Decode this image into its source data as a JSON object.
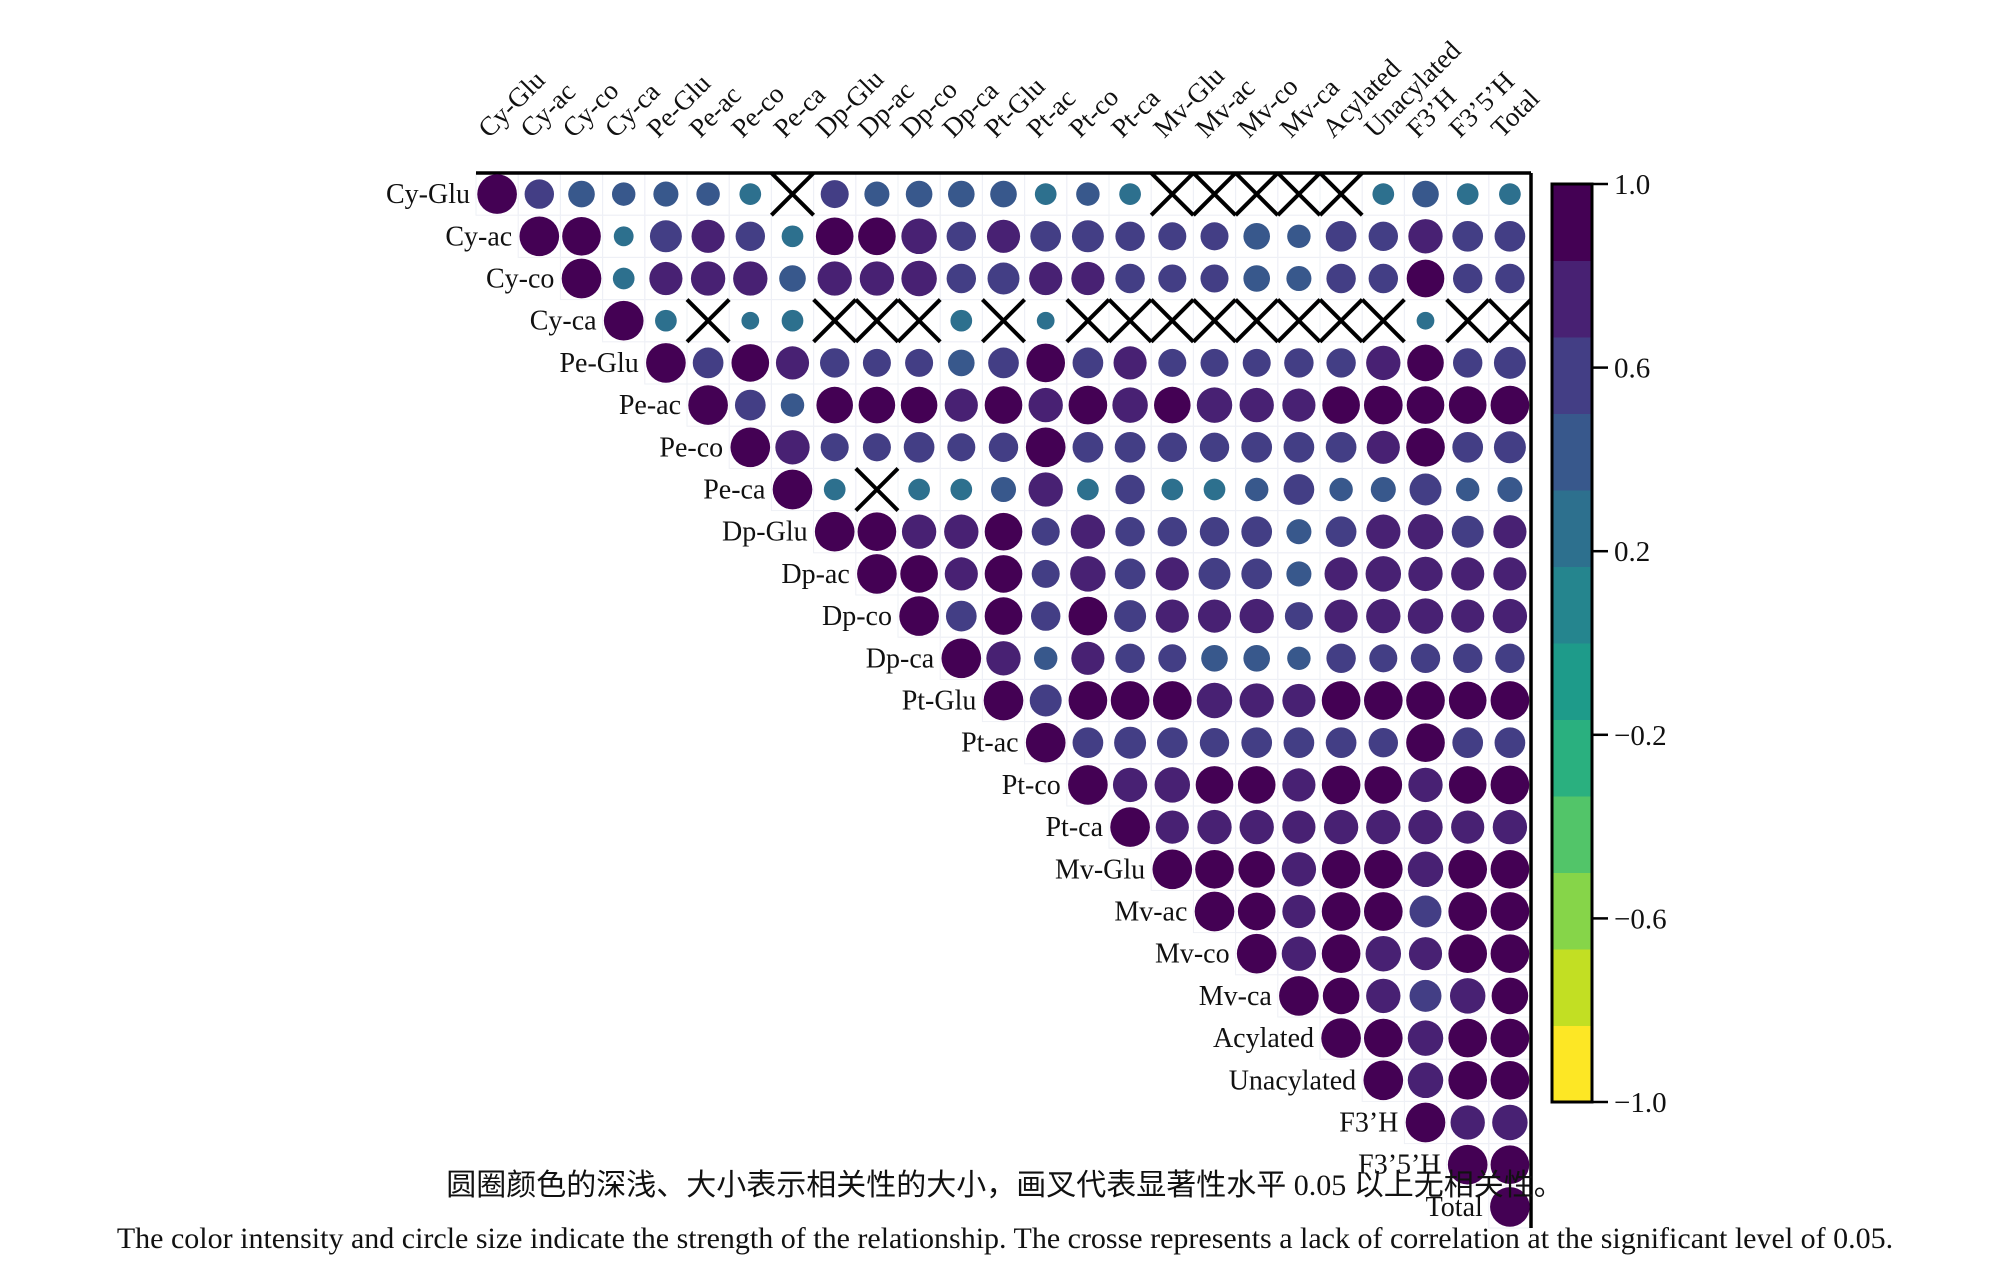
{
  "chart_data": {
    "type": "correlation-matrix",
    "variables": [
      "Cy-Glu",
      "Cy-ac",
      "Cy-co",
      "Cy-ca",
      "Pe-Glu",
      "Pe-ac",
      "Pe-co",
      "Pe-ca",
      "Dp-Glu",
      "Dp-ac",
      "Dp-co",
      "Dp-ca",
      "Pt-Glu",
      "Pt-ac",
      "Pt-co",
      "Pt-ca",
      "Mv-Glu",
      "Mv-ac",
      "Mv-co",
      "Mv-ca",
      "Acylated",
      "Unacylated",
      "F3’H",
      "F3’5’H",
      "Total"
    ],
    "matrix": [
      [
        1.0,
        0.55,
        0.45,
        0.35,
        0.4,
        0.35,
        0.3,
        0.0,
        0.5,
        0.4,
        0.45,
        0.45,
        0.45,
        0.3,
        0.35,
        0.3,
        0.0,
        0.0,
        0.0,
        0.0,
        0.0,
        0.3,
        0.45,
        0.3,
        0.3
      ],
      [
        null,
        1.0,
        0.95,
        0.25,
        0.65,
        0.7,
        0.55,
        0.3,
        0.9,
        0.9,
        0.8,
        0.55,
        0.7,
        0.6,
        0.65,
        0.55,
        0.5,
        0.5,
        0.45,
        0.35,
        0.6,
        0.55,
        0.75,
        0.6,
        0.6
      ],
      [
        null,
        null,
        1.0,
        0.3,
        0.7,
        0.75,
        0.75,
        0.45,
        0.75,
        0.75,
        0.8,
        0.55,
        0.65,
        0.7,
        0.7,
        0.55,
        0.5,
        0.5,
        0.45,
        0.4,
        0.55,
        0.55,
        0.9,
        0.55,
        0.55
      ],
      [
        null,
        null,
        null,
        1.0,
        0.3,
        0.0,
        0.2,
        0.3,
        0.0,
        0.0,
        0.0,
        0.3,
        0.0,
        0.2,
        0.0,
        0.0,
        0.0,
        0.0,
        0.0,
        0.0,
        0.0,
        0.0,
        0.2,
        0.0,
        0.0
      ],
      [
        null,
        null,
        null,
        null,
        1.0,
        0.6,
        0.9,
        0.7,
        0.55,
        0.5,
        0.5,
        0.45,
        0.6,
        0.95,
        0.6,
        0.7,
        0.5,
        0.5,
        0.5,
        0.55,
        0.55,
        0.75,
        0.85,
        0.55,
        0.65
      ],
      [
        null,
        null,
        null,
        null,
        null,
        1.0,
        0.6,
        0.35,
        0.85,
        0.85,
        0.85,
        0.7,
        0.9,
        0.75,
        0.95,
        0.8,
        0.85,
        0.8,
        0.75,
        0.7,
        0.9,
        0.95,
        0.9,
        0.9,
        0.95
      ],
      [
        null,
        null,
        null,
        null,
        null,
        null,
        1.0,
        0.75,
        0.5,
        0.5,
        0.6,
        0.5,
        0.55,
        1.0,
        0.6,
        0.6,
        0.55,
        0.55,
        0.6,
        0.6,
        0.6,
        0.7,
        0.95,
        0.6,
        0.65
      ],
      [
        null,
        null,
        null,
        null,
        null,
        null,
        null,
        1.0,
        0.3,
        0.0,
        0.3,
        0.3,
        0.4,
        0.75,
        0.3,
        0.55,
        0.3,
        0.3,
        0.35,
        0.6,
        0.35,
        0.4,
        0.65,
        0.35,
        0.4
      ],
      [
        null,
        null,
        null,
        null,
        null,
        null,
        null,
        null,
        1.0,
        0.95,
        0.75,
        0.75,
        0.9,
        0.5,
        0.75,
        0.55,
        0.55,
        0.55,
        0.6,
        0.4,
        0.6,
        0.75,
        0.8,
        0.65,
        0.7
      ],
      [
        null,
        null,
        null,
        null,
        null,
        null,
        null,
        null,
        null,
        1.0,
        0.9,
        0.7,
        0.9,
        0.5,
        0.8,
        0.6,
        0.7,
        0.65,
        0.6,
        0.4,
        0.7,
        0.8,
        0.75,
        0.7,
        0.7
      ],
      [
        null,
        null,
        null,
        null,
        null,
        null,
        null,
        null,
        null,
        null,
        1.0,
        0.6,
        0.9,
        0.55,
        0.95,
        0.65,
        0.7,
        0.7,
        0.75,
        0.5,
        0.7,
        0.75,
        0.8,
        0.7,
        0.75
      ],
      [
        null,
        null,
        null,
        null,
        null,
        null,
        null,
        null,
        null,
        null,
        null,
        1.0,
        0.75,
        0.35,
        0.7,
        0.55,
        0.5,
        0.45,
        0.45,
        0.35,
        0.55,
        0.5,
        0.55,
        0.55,
        0.55
      ],
      [
        null,
        null,
        null,
        null,
        null,
        null,
        null,
        null,
        null,
        null,
        null,
        null,
        1.0,
        0.65,
        0.95,
        0.95,
        0.95,
        0.8,
        0.75,
        0.7,
        0.95,
        0.95,
        0.95,
        0.9,
        0.95
      ],
      [
        null,
        null,
        null,
        null,
        null,
        null,
        null,
        null,
        null,
        null,
        null,
        null,
        null,
        1.0,
        0.6,
        0.65,
        0.6,
        0.55,
        0.6,
        0.6,
        0.6,
        0.55,
        0.95,
        0.6,
        0.6
      ],
      [
        null,
        null,
        null,
        null,
        null,
        null,
        null,
        null,
        null,
        null,
        null,
        null,
        null,
        null,
        1.0,
        0.75,
        0.8,
        0.9,
        0.9,
        0.7,
        0.95,
        0.9,
        0.75,
        0.9,
        0.95
      ],
      [
        null,
        null,
        null,
        null,
        null,
        null,
        null,
        null,
        null,
        null,
        null,
        null,
        null,
        null,
        null,
        1.0,
        0.7,
        0.75,
        0.75,
        0.7,
        0.75,
        0.75,
        0.75,
        0.7,
        0.75
      ],
      [
        null,
        null,
        null,
        null,
        null,
        null,
        null,
        null,
        null,
        null,
        null,
        null,
        null,
        null,
        null,
        null,
        1.0,
        0.95,
        0.85,
        0.75,
        0.95,
        0.95,
        0.8,
        0.95,
        0.95
      ],
      [
        null,
        null,
        null,
        null,
        null,
        null,
        null,
        null,
        null,
        null,
        null,
        null,
        null,
        null,
        null,
        null,
        null,
        1.0,
        0.9,
        0.7,
        0.95,
        0.95,
        0.65,
        0.95,
        0.95
      ],
      [
        null,
        null,
        null,
        null,
        null,
        null,
        null,
        null,
        null,
        null,
        null,
        null,
        null,
        null,
        null,
        null,
        null,
        null,
        1.0,
        0.75,
        0.95,
        0.8,
        0.7,
        0.95,
        0.95
      ],
      [
        null,
        null,
        null,
        null,
        null,
        null,
        null,
        null,
        null,
        null,
        null,
        null,
        null,
        null,
        null,
        null,
        null,
        null,
        null,
        1.0,
        0.85,
        0.75,
        0.65,
        0.8,
        0.85
      ],
      [
        null,
        null,
        null,
        null,
        null,
        null,
        null,
        null,
        null,
        null,
        null,
        null,
        null,
        null,
        null,
        null,
        null,
        null,
        null,
        null,
        1.0,
        0.95,
        0.8,
        0.95,
        0.95
      ],
      [
        null,
        null,
        null,
        null,
        null,
        null,
        null,
        null,
        null,
        null,
        null,
        null,
        null,
        null,
        null,
        null,
        null,
        null,
        null,
        null,
        null,
        1.0,
        0.8,
        0.95,
        0.95
      ],
      [
        null,
        null,
        null,
        null,
        null,
        null,
        null,
        null,
        null,
        null,
        null,
        null,
        null,
        null,
        null,
        null,
        null,
        null,
        null,
        null,
        null,
        null,
        1.0,
        0.75,
        0.8
      ],
      [
        null,
        null,
        null,
        null,
        null,
        null,
        null,
        null,
        null,
        null,
        null,
        null,
        null,
        null,
        null,
        null,
        null,
        null,
        null,
        null,
        null,
        null,
        null,
        1.0,
        0.95
      ],
      [
        null,
        null,
        null,
        null,
        null,
        null,
        null,
        null,
        null,
        null,
        null,
        null,
        null,
        null,
        null,
        null,
        null,
        null,
        null,
        null,
        null,
        null,
        null,
        null,
        1.0
      ]
    ],
    "not_significant": [
      [
        0,
        7
      ],
      [
        0,
        16
      ],
      [
        0,
        17
      ],
      [
        0,
        18
      ],
      [
        0,
        19
      ],
      [
        0,
        20
      ],
      [
        3,
        5
      ],
      [
        3,
        8
      ],
      [
        3,
        9
      ],
      [
        3,
        10
      ],
      [
        3,
        12
      ],
      [
        3,
        14
      ],
      [
        3,
        15
      ],
      [
        3,
        16
      ],
      [
        3,
        17
      ],
      [
        3,
        18
      ],
      [
        3,
        19
      ],
      [
        3,
        20
      ],
      [
        3,
        21
      ],
      [
        3,
        23
      ],
      [
        3,
        24
      ],
      [
        7,
        9
      ]
    ],
    "colorbar": {
      "range": [
        -1.0,
        1.0
      ],
      "ticks": [
        "1.0",
        "0.6",
        "0.2",
        "−0.2",
        "−0.6",
        "−1.0"
      ],
      "colors": [
        "#fde725",
        "#c2df23",
        "#86d549",
        "#52c569",
        "#2ab07f",
        "#1e9b8a",
        "#25858e",
        "#2d708e",
        "#38588c",
        "#433e85",
        "#482173",
        "#440154"
      ]
    },
    "grid": false,
    "legend": "right"
  },
  "caption": {
    "zh": "圆圈颜色的深浅、大小表示相关性的大小，画叉代表显著性水平 0.05 以上无相关性。",
    "en": "The color intensity and circle size indicate the strength of the relationship. The crosse represents a lack of correlation at the significant level of 0.05."
  }
}
